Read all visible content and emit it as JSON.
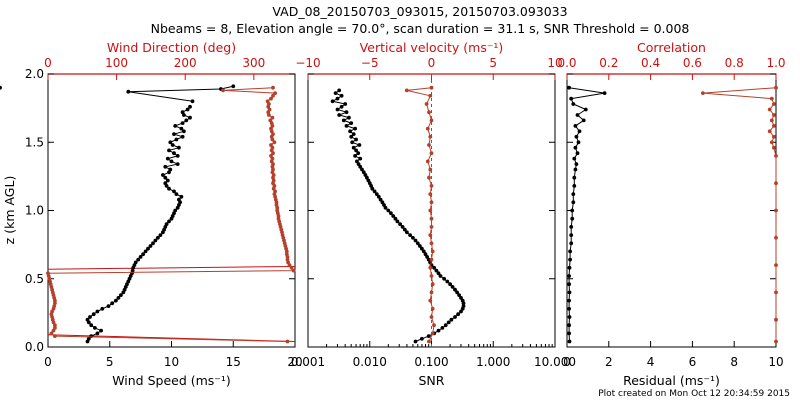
{
  "figure": {
    "title_line1": "VAD_08_20150703_093015, 20150703.093033",
    "title_line2": "Nbeams = 8, Elevation angle = 70.0°, scan duration = 31.1 s, SNR Threshold = 0.008",
    "footer": "Plot created on Mon Oct 12 20:34:59 2015",
    "ylabel": "z (km AGL)",
    "colors": {
      "black_series": "#000000",
      "red_series": "#b5412c",
      "red_axis": "#cc1111"
    }
  },
  "chart_data": [
    {
      "type": "line",
      "xlabel_bottom": "Wind Speed (ms⁻¹)",
      "xlabel_top": "Wind Direction (deg)",
      "xlim_bottom": [
        0,
        20
      ],
      "xticks_bottom": [
        "0",
        "5",
        "10",
        "15",
        "20"
      ],
      "xlim_top": [
        0,
        360
      ],
      "xticks_top": [
        "0",
        "100",
        "200",
        "300"
      ],
      "ylim": [
        0.0,
        2.0
      ],
      "yticks": [
        "0.0",
        "0.5",
        "1.0",
        "1.5",
        "2.0"
      ],
      "ref_lines_top": [
        {
          "x": [
            0,
            360
          ],
          "y": [
            0.09,
            0.04
          ]
        },
        {
          "x": [
            0,
            360
          ],
          "y": [
            0.57,
            0.59
          ]
        }
      ],
      "series": [
        {
          "axis": "bottom",
          "color": "black",
          "z": [
            0.04,
            0.06,
            0.08,
            0.1,
            0.12,
            0.14,
            0.16,
            0.18,
            0.2,
            0.22,
            0.24,
            0.26,
            0.28,
            0.3,
            0.32,
            0.34,
            0.36,
            0.38,
            0.4,
            0.42,
            0.44,
            0.46,
            0.48,
            0.5,
            0.52,
            0.54,
            0.56,
            0.58,
            0.6,
            0.62,
            0.64,
            0.66,
            0.68,
            0.7,
            0.72,
            0.74,
            0.76,
            0.78,
            0.8,
            0.82,
            0.84,
            0.86,
            0.88,
            0.9,
            0.92,
            0.94,
            0.96,
            0.98,
            1.0,
            1.02,
            1.04,
            1.06,
            1.08,
            1.1,
            1.12,
            1.14,
            1.16,
            1.18,
            1.2,
            1.22,
            1.24,
            1.26,
            1.28,
            1.3,
            1.32,
            1.34,
            1.36,
            1.38,
            1.4,
            1.42,
            1.44,
            1.46,
            1.48,
            1.5,
            1.52,
            1.54,
            1.56,
            1.58,
            1.6,
            1.62,
            1.64,
            1.66,
            1.68,
            1.7,
            1.72,
            1.74,
            1.76
          ],
          "values": [
            3.2,
            3.3,
            3.5,
            4.0,
            4.3,
            3.8,
            3.5,
            3.3,
            3.2,
            3.4,
            3.7,
            4.0,
            4.4,
            4.9,
            5.2,
            5.5,
            5.7,
            5.9,
            6.1,
            6.2,
            6.3,
            6.4,
            6.5,
            6.6,
            6.7,
            6.8,
            6.85,
            6.9,
            7.0,
            7.1,
            7.3,
            7.5,
            7.7,
            7.9,
            8.1,
            8.3,
            8.5,
            8.7,
            8.9,
            9.1,
            9.3,
            9.4,
            9.5,
            9.6,
            9.8,
            10.0,
            10.1,
            10.2,
            10.3,
            10.5,
            10.6,
            10.7,
            10.6,
            10.8,
            10.4,
            10.2,
            9.8,
            9.6,
            9.5,
            9.7,
            9.5,
            9.3,
            9.8,
            9.9,
            9.5,
            10.5,
            10.0,
            9.7,
            10.5,
            10.2,
            9.8,
            10.6,
            10.1,
            9.9,
            10.4,
            10.9,
            10.2,
            11.0,
            10.8,
            10.3,
            10.9,
            11.2,
            11.5,
            11.0,
            10.9,
            11.3,
            11.5
          ]
        },
        {
          "axis": "bottom",
          "color": "black",
          "z": [
            1.8,
            1.87,
            1.89,
            1.91
          ],
          "values": [
            11.7,
            6.5,
            14.0,
            15.0
          ]
        },
        {
          "axis": "top",
          "color": "red",
          "z": [
            0.04,
            0.08,
            0.1,
            0.12,
            0.14,
            0.16,
            0.18,
            0.2,
            0.22,
            0.24,
            0.26,
            0.28,
            0.3,
            0.32,
            0.34,
            0.36,
            0.38,
            0.4,
            0.42,
            0.44,
            0.46,
            0.48,
            0.5,
            0.52,
            0.54,
            0.56,
            0.58,
            0.6,
            0.62,
            0.64,
            0.66,
            0.68,
            0.7,
            0.72,
            0.74,
            0.76,
            0.78,
            0.8,
            0.82,
            0.84,
            0.86,
            0.88,
            0.9,
            0.92,
            0.94,
            0.96,
            0.98,
            1.0,
            1.02,
            1.04,
            1.06,
            1.08,
            1.1,
            1.12,
            1.14,
            1.16,
            1.18,
            1.2,
            1.22,
            1.24,
            1.26,
            1.28,
            1.3,
            1.32,
            1.34,
            1.36,
            1.38,
            1.4,
            1.42,
            1.44,
            1.46,
            1.48,
            1.5,
            1.52,
            1.54,
            1.56,
            1.58,
            1.6,
            1.62,
            1.64,
            1.66,
            1.68,
            1.7,
            1.72,
            1.74,
            1.76,
            1.78,
            1.8,
            1.82,
            1.84,
            1.86,
            1.88,
            1.9
          ],
          "values": [
            349,
            10,
            5,
            8,
            10,
            10,
            8,
            7,
            6,
            5,
            6,
            8,
            9,
            10,
            10,
            9,
            8,
            7,
            6,
            5,
            4,
            3,
            2,
            1,
            0,
            358,
            355,
            352,
            350,
            349,
            349,
            348,
            348,
            347,
            346,
            345,
            344,
            343,
            342,
            341,
            340,
            339,
            338,
            337,
            336,
            336,
            335,
            334,
            334,
            333,
            333,
            332,
            331,
            330,
            331,
            329,
            330,
            328,
            329,
            328,
            329,
            327,
            328,
            327,
            328,
            326,
            327,
            325,
            328,
            326,
            327,
            325,
            330,
            327,
            326,
            328,
            326,
            325,
            327,
            326,
            324,
            327,
            322,
            321,
            323,
            321,
            322,
            320,
            325,
            328,
            331,
            255,
            328
          ]
        }
      ]
    },
    {
      "type": "line",
      "xlabel_bottom": "SNR",
      "xlabel_top": "Vertical velocity (ms⁻¹)",
      "xscale_bottom": "log",
      "xlim_bottom": [
        0.001,
        10
      ],
      "xticks_bottom": [
        "0.001",
        "0.010",
        "0.100",
        "1.000",
        "10.000"
      ],
      "xlim_top": [
        -10,
        10
      ],
      "xticks_top": [
        "−10",
        "−5",
        "0",
        "5",
        "10"
      ],
      "ylim": [
        0.0,
        2.0
      ],
      "vline_top": 0,
      "series": [
        {
          "axis": "bottom",
          "color": "black",
          "z": [
            0.04,
            0.06,
            0.08,
            0.1,
            0.12,
            0.14,
            0.16,
            0.18,
            0.2,
            0.22,
            0.24,
            0.26,
            0.28,
            0.3,
            0.32,
            0.34,
            0.36,
            0.38,
            0.4,
            0.42,
            0.44,
            0.46,
            0.48,
            0.5,
            0.52,
            0.54,
            0.56,
            0.58,
            0.6,
            0.62,
            0.64,
            0.66,
            0.68,
            0.7,
            0.72,
            0.74,
            0.76,
            0.78,
            0.8,
            0.82,
            0.84,
            0.86,
            0.88,
            0.9,
            0.92,
            0.94,
            0.96,
            0.98,
            1.0,
            1.02,
            1.04,
            1.06,
            1.08,
            1.1,
            1.12,
            1.14,
            1.16,
            1.18,
            1.2,
            1.22,
            1.24,
            1.26,
            1.28,
            1.3,
            1.32,
            1.34,
            1.36,
            1.38,
            1.4,
            1.42,
            1.44,
            1.46,
            1.48,
            1.5,
            1.52,
            1.54,
            1.56,
            1.58,
            1.6,
            1.62,
            1.64,
            1.66,
            1.68,
            1.7,
            1.72,
            1.74,
            1.76,
            1.78,
            1.8,
            1.82,
            1.84,
            1.86,
            1.88,
            1.9
          ],
          "values": [
            0.055,
            0.07,
            0.09,
            0.11,
            0.13,
            0.15,
            0.17,
            0.19,
            0.21,
            0.24,
            0.27,
            0.3,
            0.32,
            0.33,
            0.33,
            0.32,
            0.3,
            0.28,
            0.26,
            0.24,
            0.22,
            0.2,
            0.18,
            0.16,
            0.14,
            0.13,
            0.12,
            0.11,
            0.1,
            0.095,
            0.09,
            0.085,
            0.08,
            0.075,
            0.07,
            0.065,
            0.06,
            0.055,
            0.05,
            0.045,
            0.04,
            0.037,
            0.034,
            0.031,
            0.028,
            0.026,
            0.024,
            0.022,
            0.02,
            0.018,
            0.017,
            0.016,
            0.015,
            0.014,
            0.013,
            0.012,
            0.011,
            0.0105,
            0.01,
            0.0095,
            0.009,
            0.0085,
            0.008,
            0.0075,
            0.007,
            0.0066,
            0.0062,
            0.007,
            0.0058,
            0.0065,
            0.006,
            0.0055,
            0.0068,
            0.0052,
            0.006,
            0.005,
            0.0055,
            0.0048,
            0.0058,
            0.0042,
            0.005,
            0.0038,
            0.0046,
            0.0032,
            0.0042,
            0.003,
            0.0035,
            0.004,
            0.0025,
            0.003,
            0.0035,
            0.0028,
            0.0032
          ]
        },
        {
          "axis": "top",
          "color": "red",
          "z": [
            0.04,
            0.1,
            0.16,
            0.22,
            0.28,
            0.34,
            0.4,
            0.46,
            0.52,
            0.58,
            0.64,
            0.7,
            0.76,
            0.82,
            0.88,
            0.94,
            1.0,
            1.06,
            1.12,
            1.18,
            1.24,
            1.3,
            1.36,
            1.42,
            1.48,
            1.54,
            1.6,
            1.66,
            1.72,
            1.78,
            1.84,
            1.88,
            1.9
          ],
          "values": [
            -0.2,
            0.1,
            0.2,
            0.0,
            0.1,
            -0.1,
            0.0,
            0.1,
            0.0,
            -0.1,
            0.0,
            0.1,
            0.0,
            -0.1,
            0.0,
            0.0,
            -0.1,
            0.0,
            -0.1,
            0.0,
            -0.2,
            -0.1,
            -0.3,
            0.0,
            -0.2,
            -0.1,
            -0.3,
            0.0,
            -0.2,
            -0.4,
            -0.1,
            -2.0,
            0.0
          ]
        }
      ]
    },
    {
      "type": "line",
      "xlabel_bottom": "Residual (ms⁻¹)",
      "xlabel_top": "Correlation",
      "xlim_bottom": [
        0,
        10
      ],
      "xticks_bottom": [
        "0",
        "2",
        "4",
        "6",
        "8",
        "10"
      ],
      "xlim_top": [
        0,
        1
      ],
      "xticks_top": [
        "0.0",
        "0.2",
        "0.4",
        "0.6",
        "0.8",
        "1.0"
      ],
      "ylim": [
        0.0,
        2.0
      ],
      "series": [
        {
          "axis": "bottom",
          "color": "black",
          "z": [
            0.04,
            0.1,
            0.16,
            0.22,
            0.28,
            0.34,
            0.4,
            0.46,
            0.52,
            0.58,
            0.64,
            0.7,
            0.76,
            0.82,
            0.88,
            0.94,
            1.0,
            1.06,
            1.12,
            1.18,
            1.24,
            1.3,
            1.34,
            1.38,
            1.42,
            1.46,
            1.5,
            1.54,
            1.58,
            1.62,
            1.66,
            1.7,
            1.74,
            1.78,
            1.82,
            1.86,
            1.9
          ],
          "values": [
            0.12,
            0.1,
            0.1,
            0.12,
            0.1,
            0.1,
            0.12,
            0.1,
            0.1,
            0.12,
            0.15,
            0.15,
            0.2,
            0.2,
            0.2,
            0.25,
            0.25,
            0.3,
            0.3,
            0.35,
            0.35,
            0.4,
            0.45,
            0.35,
            0.5,
            0.4,
            0.55,
            0.45,
            0.6,
            0.4,
            0.8,
            0.5,
            0.9,
            0.3,
            0.2,
            1.8,
            0.1
          ]
        },
        {
          "axis": "top",
          "color": "red",
          "z": [
            0.04,
            0.2,
            0.4,
            0.6,
            0.8,
            1.0,
            1.2,
            1.4,
            1.46,
            1.5,
            1.54,
            1.58,
            1.62,
            1.66,
            1.7,
            1.74,
            1.78,
            1.82,
            1.86,
            1.9
          ],
          "values": [
            1.0,
            1.0,
            1.0,
            1.0,
            1.0,
            1.0,
            1.0,
            1.0,
            0.99,
            0.98,
            0.99,
            0.97,
            0.99,
            0.98,
            0.99,
            0.97,
            0.99,
            0.98,
            0.65,
            1.0
          ]
        }
      ]
    }
  ]
}
